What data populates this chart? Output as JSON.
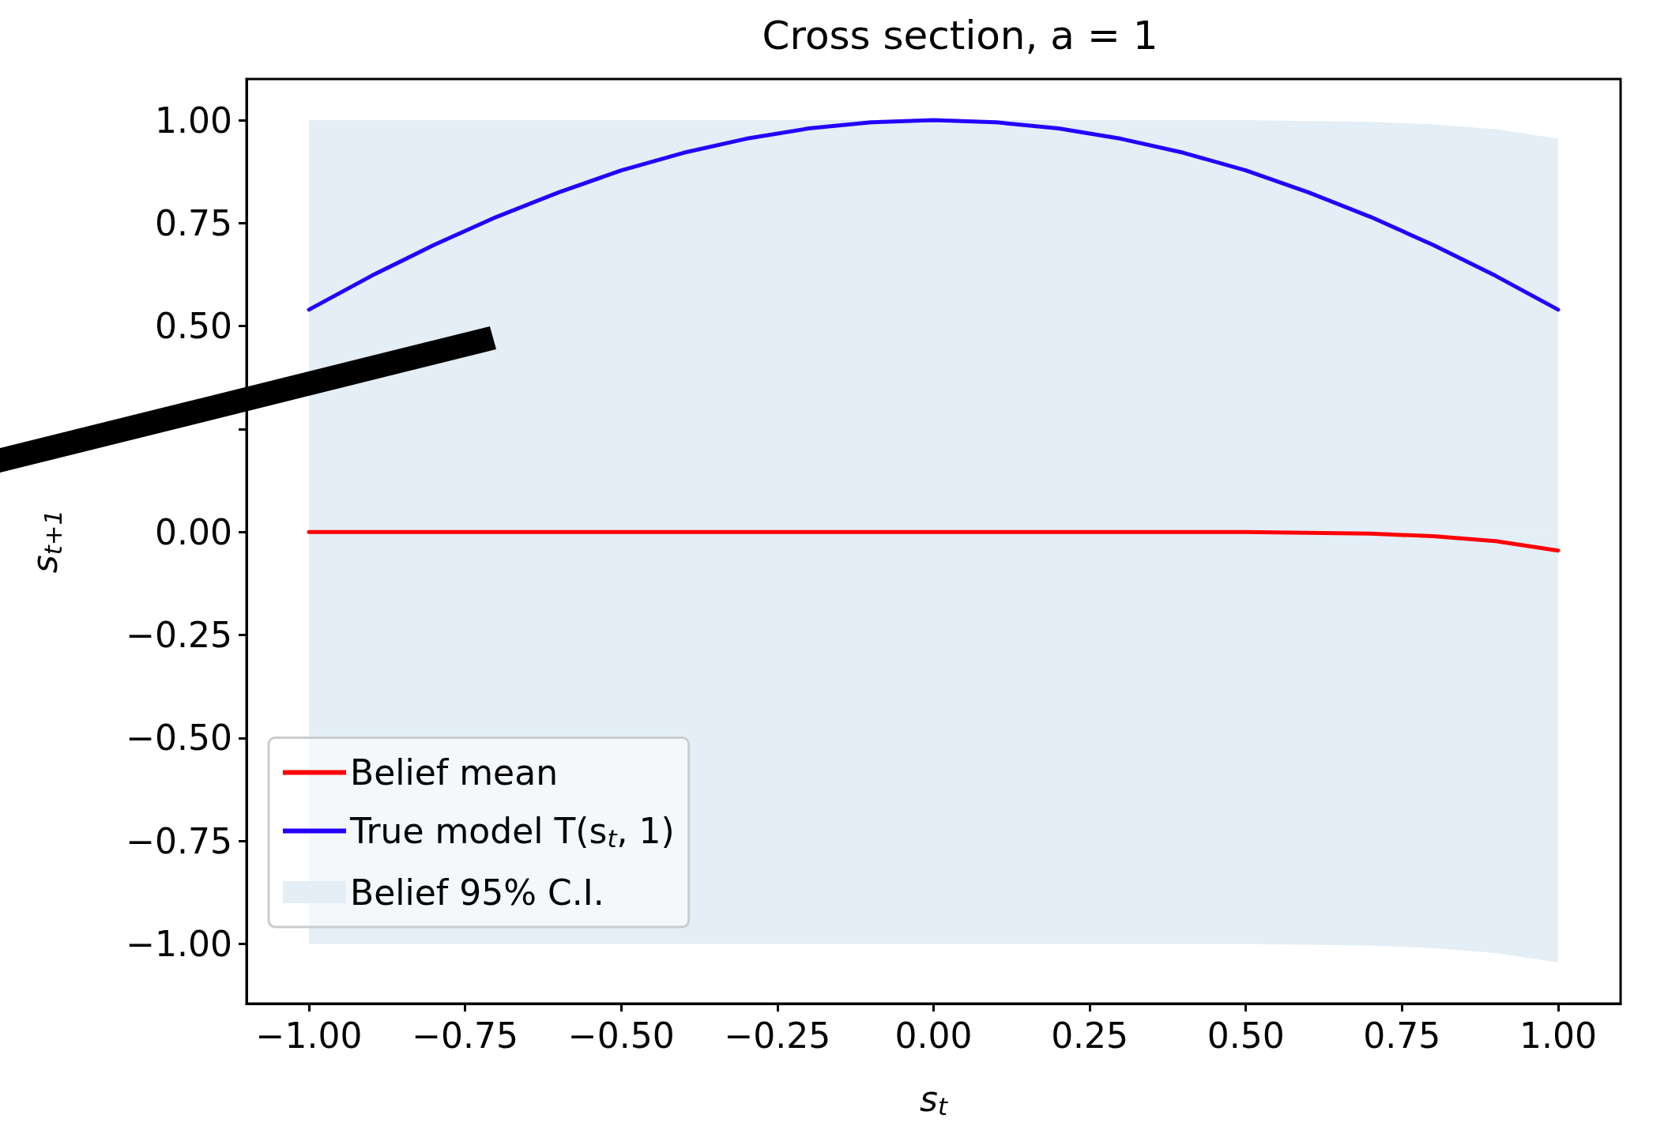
{
  "chart_data": {
    "type": "line",
    "title": "Cross section, a = 1",
    "xlabel": "s$_{t}$",
    "ylabel": "s$_{t+1}$",
    "x": [
      -1,
      -0.9,
      -0.8,
      -0.7,
      -0.6,
      -0.5,
      -0.4,
      -0.3,
      -0.2,
      -0.1,
      0,
      0.1,
      0.2,
      0.3,
      0.4,
      0.5,
      0.6,
      0.7,
      0.8,
      0.9,
      1
    ],
    "series": [
      {
        "name": "Belief mean",
        "color": "#ff0000",
        "values": [
          0,
          0,
          0,
          0,
          0,
          0,
          0,
          0,
          0,
          0,
          0,
          0,
          0,
          0,
          0,
          0,
          -0.002,
          -0.004,
          -0.01,
          -0.022,
          -0.045
        ]
      },
      {
        "name": "True model T(s$_{t}$, 1)",
        "color": "#2200ff",
        "values": [
          0.54,
          0.622,
          0.697,
          0.765,
          0.825,
          0.878,
          0.921,
          0.955,
          0.98,
          0.995,
          1,
          0.995,
          0.98,
          0.955,
          0.921,
          0.878,
          0.825,
          0.765,
          0.697,
          0.622,
          0.54
        ]
      },
      {
        "name": "Belief 95% C.I.",
        "type": "area",
        "color": "#e3eef6",
        "values": [
          null,
          null,
          null,
          null,
          null,
          null,
          null,
          null,
          null,
          null,
          null,
          null,
          null,
          null,
          null,
          null,
          null,
          null,
          null,
          null,
          null
        ],
        "lower": [
          -1,
          -1,
          -1,
          -1,
          -1,
          -1,
          -1,
          -1,
          -1,
          -1,
          -1,
          -1,
          -1,
          -1,
          -1,
          -1,
          -1.002,
          -1.004,
          -1.01,
          -1.022,
          -1.045
        ],
        "upper": [
          1,
          1,
          1,
          1,
          1,
          1,
          1,
          1,
          1,
          1,
          1,
          1,
          1,
          1,
          1,
          1,
          0.998,
          0.996,
          0.99,
          0.978,
          0.955
        ]
      }
    ],
    "xlim": [
      -1.1,
      1.1
    ],
    "xticks": [
      {
        "value": -1,
        "label": "−1.00"
      },
      {
        "value": -0.75,
        "label": "−0.75"
      },
      {
        "value": -0.5,
        "label": "−0.50"
      },
      {
        "value": -0.25,
        "label": "−0.25"
      },
      {
        "value": 0,
        "label": "0.00"
      },
      {
        "value": 0.25,
        "label": "0.25"
      },
      {
        "value": 0.5,
        "label": "0.50"
      },
      {
        "value": 0.75,
        "label": "0.75"
      },
      {
        "value": 1,
        "label": "1.00"
      }
    ],
    "ylim": [
      -1.145,
      1.1
    ],
    "yticks": [
      {
        "value": -1,
        "label": "−1.00"
      },
      {
        "value": -0.75,
        "label": "−0.75"
      },
      {
        "value": -0.5,
        "label": "−0.50"
      },
      {
        "value": -0.25,
        "label": "−0.25"
      },
      {
        "value": 0,
        "label": "0.00"
      },
      {
        "value": 0.25,
        "label": null
      },
      {
        "value": 0.5,
        "label": "0.50"
      },
      {
        "value": 0.75,
        "label": "0.75"
      },
      {
        "value": 1,
        "label": "1.00"
      }
    ],
    "grid": false,
    "legend": "bottom left",
    "marker": "none",
    "line_style": "solid"
  }
}
